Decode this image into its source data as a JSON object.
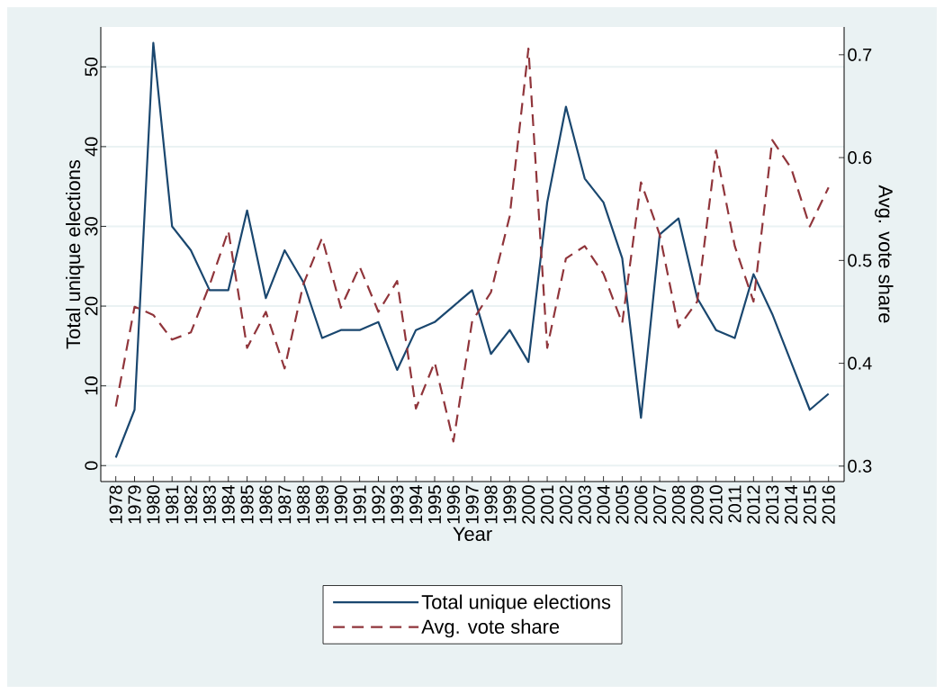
{
  "chart_data": {
    "type": "line",
    "xlabel": "Year",
    "ylabel": "Total unique elections",
    "y2label": "Avg. vote share",
    "categories": [
      "1978",
      "1979",
      "1980",
      "1981",
      "1982",
      "1983",
      "1984",
      "1985",
      "1986",
      "1987",
      "1988",
      "1989",
      "1990",
      "1991",
      "1992",
      "1993",
      "1994",
      "1995",
      "1996",
      "1997",
      "1998",
      "1999",
      "2000",
      "2001",
      "2002",
      "2003",
      "2004",
      "2005",
      "2006",
      "2007",
      "2008",
      "2009",
      "2010",
      "2011",
      "2012",
      "2013",
      "2014",
      "2015",
      "2016"
    ],
    "ylim": [
      -2,
      55
    ],
    "yticks": [
      0,
      10,
      20,
      30,
      40,
      50
    ],
    "y2lim": [
      0.285,
      0.727
    ],
    "y2ticks": [
      0.3,
      0.4,
      0.5,
      0.6,
      0.7
    ],
    "grid": "y",
    "legend": "bottom",
    "series": [
      {
        "name": "Total unique elections",
        "color": "#1a476f",
        "line_style": "solid",
        "values": [
          1,
          7,
          53,
          30,
          27,
          22,
          22,
          32,
          21,
          27,
          23,
          16,
          17,
          17,
          18,
          12,
          17,
          18,
          20,
          22,
          14,
          17,
          13,
          33,
          45,
          36,
          33,
          26,
          6,
          29,
          31,
          21,
          17,
          16,
          24,
          19,
          13,
          7,
          9
        ]
      },
      {
        "name": "Avg. vote share",
        "color": "#90353b",
        "line_style": "dashed",
        "axis": "y2",
        "values": [
          0.358,
          0.455,
          0.447,
          0.423,
          0.43,
          0.476,
          0.529,
          0.415,
          0.45,
          0.395,
          0.477,
          0.522,
          0.454,
          0.494,
          0.45,
          0.48,
          0.356,
          0.401,
          0.324,
          0.441,
          0.469,
          0.543,
          0.706,
          0.415,
          0.502,
          0.514,
          0.487,
          0.439,
          0.576,
          0.525,
          0.435,
          0.46,
          0.607,
          0.514,
          0.46,
          0.617,
          0.59,
          0.533,
          0.571
        ]
      }
    ]
  }
}
